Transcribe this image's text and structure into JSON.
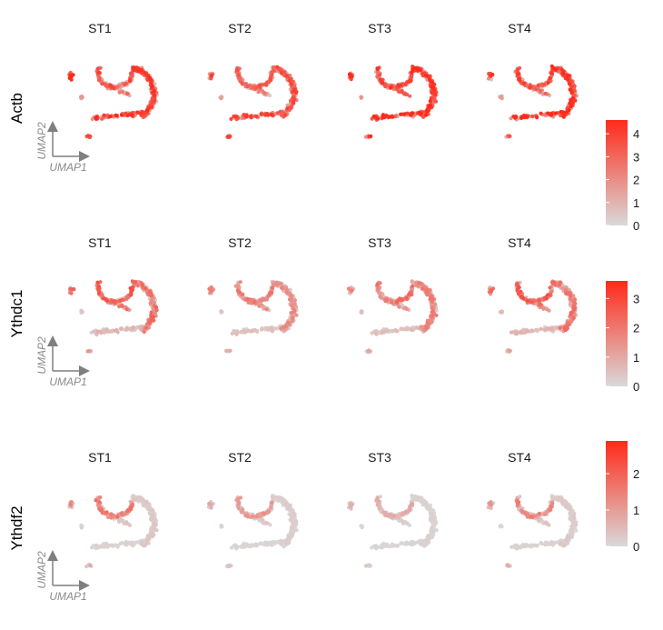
{
  "chart_data": {
    "type": "scatter",
    "description_kind": "UMAP feature plots, 3 genes x 4 groups",
    "groups": [
      "ST1",
      "ST2",
      "ST3",
      "ST4"
    ],
    "axis_hint": {
      "x": "UMAP1",
      "y": "UMAP2"
    },
    "color_low": "#d9d9d9",
    "color_high": "#ff2a1a",
    "rows": [
      {
        "gene": "Actb",
        "max": 4.6,
        "ticks": [
          0,
          1,
          2,
          3,
          4
        ],
        "expression_level": [
          0.62,
          0.55,
          0.68,
          0.64
        ]
      },
      {
        "gene": "Ythdc1",
        "max": 3.6,
        "ticks": [
          0,
          1,
          2,
          3
        ],
        "expression_level": [
          0.42,
          0.3,
          0.34,
          0.4
        ]
      },
      {
        "gene": "Ythdf2",
        "max": 2.9,
        "ticks": [
          0,
          1,
          2
        ],
        "expression_level": [
          0.2,
          0.14,
          0.1,
          0.18
        ]
      }
    ]
  }
}
